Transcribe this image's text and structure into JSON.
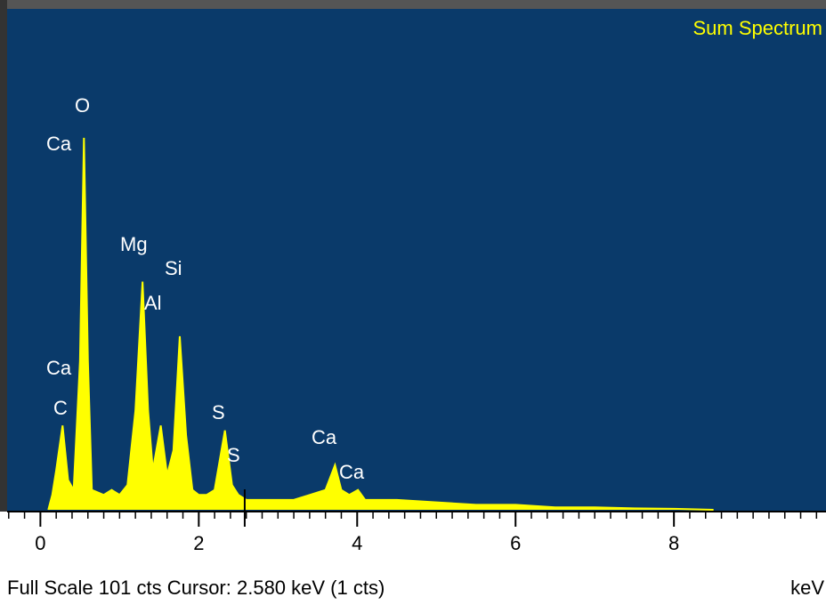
{
  "chart_data": {
    "type": "area",
    "title": "Sum Spectrum",
    "x_label": "keV",
    "footer": "Full Scale 101 cts  Cursor: 2.580 keV (1 cts)",
    "x": [
      0.1,
      0.15,
      0.2,
      0.28,
      0.35,
      0.42,
      0.5,
      0.55,
      0.6,
      0.65,
      0.8,
      0.9,
      1.0,
      1.1,
      1.2,
      1.29,
      1.36,
      1.42,
      1.52,
      1.6,
      1.68,
      1.76,
      1.84,
      1.92,
      2.0,
      2.1,
      2.2,
      2.33,
      2.42,
      2.5,
      2.6,
      2.8,
      3.0,
      3.2,
      3.4,
      3.6,
      3.72,
      3.8,
      3.9,
      4.01,
      4.1,
      4.5,
      5.0,
      5.5,
      6.0,
      6.5,
      7.0,
      7.5,
      8.0,
      8.5
    ],
    "values": [
      0,
      3,
      8,
      17,
      6,
      4,
      30,
      75,
      30,
      4,
      3,
      4,
      3,
      5,
      20,
      46,
      20,
      8,
      17,
      7,
      12,
      35,
      15,
      4,
      3,
      3,
      4,
      16,
      5,
      3,
      2,
      2,
      2,
      2,
      3,
      4,
      9,
      4,
      3,
      4,
      2,
      2,
      1.5,
      1,
      1,
      0.5,
      0.5,
      0.3,
      0.2,
      0
    ],
    "color": "#ffff00",
    "background": "#0a3a6a",
    "xlim": [
      -0.42,
      9.92
    ],
    "ylim": [
      0,
      101
    ],
    "xticks": [
      0,
      2,
      4,
      6,
      8
    ],
    "cursor": 2.58,
    "peak_labels": [
      "O",
      "Ca",
      "Mg",
      "Si",
      "Al",
      "Ca",
      "C",
      "S",
      "S",
      "Ca",
      "Ca"
    ]
  }
}
